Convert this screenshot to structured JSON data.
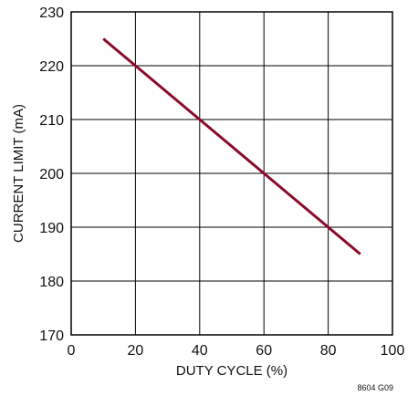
{
  "chart_data": {
    "type": "line",
    "xlabel": "DUTY CYCLE (%)",
    "ylabel": "CURRENT LIMIT (mA)",
    "xlim": [
      0,
      100
    ],
    "ylim": [
      170,
      230
    ],
    "xticks": [
      0,
      20,
      40,
      60,
      80,
      100
    ],
    "yticks": [
      170,
      180,
      190,
      200,
      210,
      220,
      230
    ],
    "grid": true,
    "series": [
      {
        "x": [
          10,
          20,
          40,
          60,
          80,
          90
        ],
        "y": [
          225,
          220,
          210,
          200,
          190,
          185
        ]
      }
    ],
    "figure_code": "8604 G09"
  },
  "colors": {
    "line": "#8b0a2a",
    "grid": "#000000",
    "frame": "#000000"
  }
}
